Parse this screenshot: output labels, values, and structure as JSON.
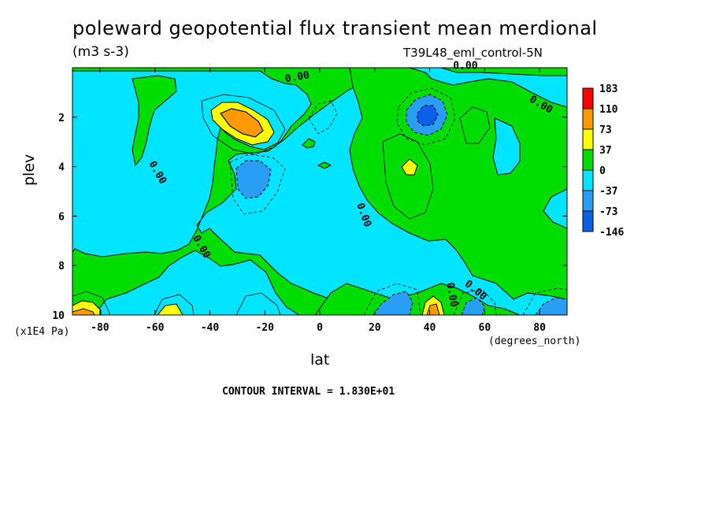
{
  "chart_data": {
    "type": "heatmap",
    "title": "poleward geopotential flux transient mean merdional",
    "units": "(m3 s-3)",
    "experiment": "T39L48_eml_control-5N",
    "xlabel": "lat",
    "ylabel": "plev",
    "x_unit": "(degrees_north)",
    "y_unit": "(x1E4 Pa)",
    "xlim": [
      -90,
      90
    ],
    "ylim": [
      10,
      0
    ],
    "x_ticks": [
      -80,
      -60,
      -40,
      -20,
      0,
      20,
      40,
      60,
      80
    ],
    "y_ticks": [
      2,
      4,
      6,
      8,
      10
    ],
    "contour_interval_text": "CONTOUR INTERVAL = 1.830E+01",
    "contour_label": "0.00",
    "colorbar": {
      "levels": [
        "183",
        "110",
        "73",
        "37",
        "0",
        "-37",
        "-73",
        "-146"
      ],
      "colors": [
        "#ff0000",
        "#ff9900",
        "#ffff00",
        "#00dd00",
        "#00e5ff",
        "#2a9df5",
        "#0b5fe8"
      ]
    },
    "features": [
      {
        "lat": -25,
        "plev": 2.5,
        "sign": "positive",
        "peak": 110
      },
      {
        "lat": 38,
        "plev": 2.0,
        "sign": "negative",
        "peak": -73
      },
      {
        "lat": -25,
        "plev": 4.5,
        "sign": "negative",
        "peak": -37
      },
      {
        "lat": 32,
        "plev": 4.0,
        "sign": "positive",
        "peak": 37
      },
      {
        "lat": -85,
        "plev": 10.0,
        "sign": "positive",
        "peak": 73
      },
      {
        "lat": 40,
        "plev": 10.0,
        "sign": "positive",
        "peak": 110
      },
      {
        "lat": 28,
        "plev": 9.8,
        "sign": "negative",
        "peak": -37
      },
      {
        "lat": 55,
        "plev": 9.8,
        "sign": "negative",
        "peak": -37
      }
    ]
  }
}
